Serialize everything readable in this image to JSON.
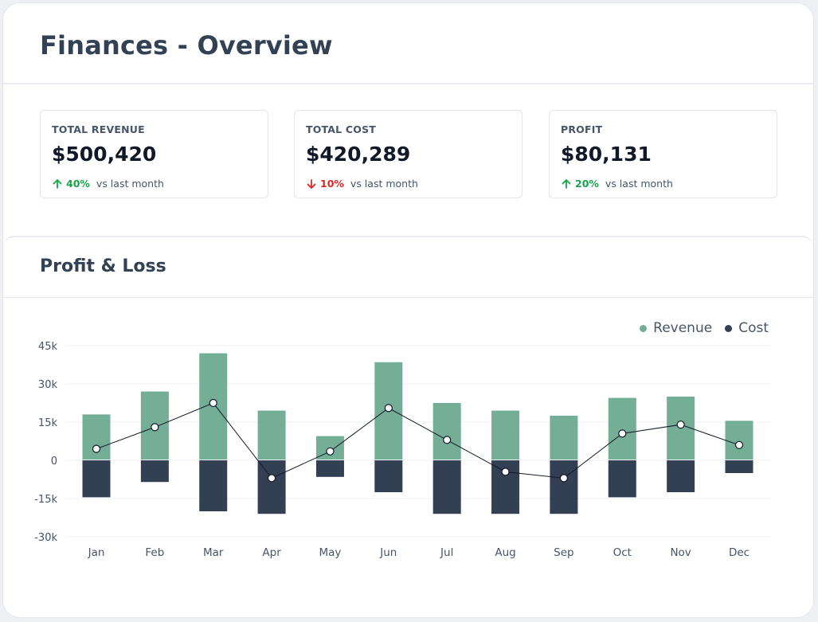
{
  "header": {
    "title": "Finances - Overview"
  },
  "stats": [
    {
      "label": "TOTAL REVENUE",
      "value": "$500,420",
      "direction": "up",
      "pct": "40%",
      "suffix": "vs last month"
    },
    {
      "label": "TOTAL COST",
      "value": "$420,289",
      "direction": "down",
      "pct": "10%",
      "suffix": "vs last month"
    },
    {
      "label": "PROFIT",
      "value": "$80,131",
      "direction": "up",
      "pct": "20%",
      "suffix": "vs last month"
    }
  ],
  "panel": {
    "title": "Profit & Loss"
  },
  "legend": {
    "revenue": "Revenue",
    "cost": "Cost"
  },
  "colors": {
    "revenue": "#74ae97",
    "cost": "#333f53",
    "up": "#16a34a",
    "down": "#dc2626"
  },
  "chart_data": {
    "type": "bar",
    "categories": [
      "Jan",
      "Feb",
      "Mar",
      "Apr",
      "May",
      "Jun",
      "Jul",
      "Aug",
      "Sep",
      "Oct",
      "Nov",
      "Dec"
    ],
    "series": [
      {
        "name": "Revenue",
        "type": "bar",
        "values": [
          18000,
          27000,
          42000,
          19500,
          9500,
          38500,
          22500,
          19500,
          17500,
          24500,
          25000,
          15500
        ]
      },
      {
        "name": "Cost",
        "type": "bar",
        "values": [
          -14500,
          -8500,
          -20000,
          -21000,
          -6500,
          -12500,
          -21000,
          -21000,
          -21000,
          -14500,
          -12500,
          -5000
        ]
      },
      {
        "type": "line",
        "values": [
          4500,
          13000,
          22500,
          -7000,
          3500,
          20500,
          8000,
          -4500,
          -7000,
          10500,
          14000,
          6000
        ]
      }
    ],
    "yticks": [
      "45k",
      "30k",
      "15k",
      "0",
      "-15k",
      "-30k"
    ],
    "ylim": [
      -30000,
      45000
    ],
    "legend_position": "top-right",
    "grid": true
  }
}
